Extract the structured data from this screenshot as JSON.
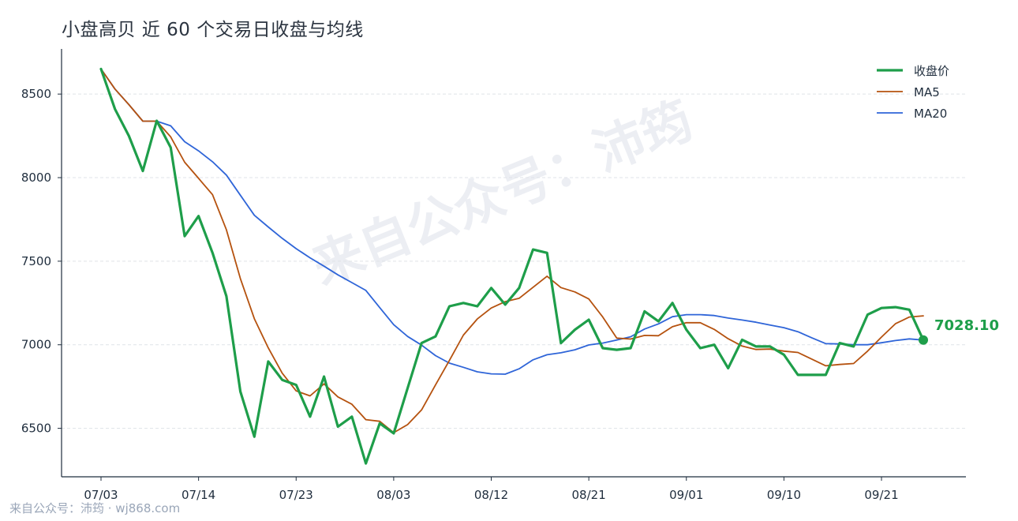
{
  "page": {
    "title": "小盘高贝 近 60 个交易日收盘与均线",
    "watermark": "来自公众号：沛筠",
    "footer": "来自公众号：沛筠 · wj868.com"
  },
  "chart_data": {
    "type": "line",
    "title": "小盘高贝 近 60 个交易日收盘与均线",
    "xlabel": "",
    "ylabel": "",
    "x_tick_labels": [
      "07/03",
      "07/14",
      "07/23",
      "08/03",
      "08/12",
      "08/21",
      "09/01",
      "09/10",
      "09/21"
    ],
    "x_tick_indices": [
      0,
      7,
      14,
      21,
      28,
      35,
      42,
      49,
      56
    ],
    "y_ticks": [
      6500,
      7000,
      7500,
      8000,
      8500
    ],
    "ylim": [
      6210,
      8770
    ],
    "grid": "horizontal dashed",
    "legend_position": "top-right",
    "last_value_label": "7028.10",
    "series": [
      {
        "name": "收盘价",
        "color": "#1e9e4a",
        "values": [
          8650,
          8410,
          8250,
          8040,
          8340,
          8180,
          7650,
          7770,
          7550,
          7290,
          6720,
          6450,
          6900,
          6790,
          6760,
          6570,
          6810,
          6510,
          6570,
          6290,
          6530,
          6470,
          6740,
          7010,
          7050,
          7230,
          7250,
          7230,
          7340,
          7240,
          7340,
          7570,
          7550,
          7010,
          7090,
          7150,
          6980,
          6970,
          6980,
          7200,
          7140,
          7250,
          7090,
          6980,
          7000,
          6860,
          7030,
          6990,
          6990,
          6940,
          6820,
          6820,
          6820,
          7010,
          6990,
          7180,
          7220,
          7225,
          7210,
          7028.1
        ]
      },
      {
        "name": "MA5",
        "color": "#b5520f",
        "values": [
          8650,
          8530,
          8437,
          8338,
          8338,
          8244,
          8092,
          7996,
          7898,
          7688,
          7396,
          7156,
          6982,
          6830,
          6724,
          6694,
          6766,
          6688,
          6644,
          6552,
          6542,
          6474,
          6522,
          6610,
          6760,
          6906,
          7058,
          7154,
          7220,
          7258,
          7278,
          7344,
          7410,
          7342,
          7316,
          7274,
          7166,
          7040,
          7034,
          7056,
          7054,
          7108,
          7132,
          7132,
          7092,
          7036,
          6992,
          6972,
          6974,
          6962,
          6954,
          6914,
          6874,
          6882,
          6888,
          6962,
          7046,
          7126,
          7166,
          7173
        ]
      },
      {
        "name": "MA20",
        "color": "#2f65d8",
        "values": [
          8650,
          8530,
          8437,
          8338,
          8338,
          8310,
          8215,
          8160,
          8095,
          8015,
          7895,
          7775,
          7705,
          7637,
          7575,
          7520,
          7470,
          7418,
          7372,
          7325,
          7222,
          7120,
          7050,
          6998,
          6935,
          6890,
          6865,
          6838,
          6826,
          6824,
          6856,
          6910,
          6940,
          6952,
          6970,
          6999,
          7010,
          7028,
          7048,
          7094,
          7125,
          7168,
          7180,
          7180,
          7175,
          7160,
          7148,
          7135,
          7118,
          7102,
          7078,
          7042,
          7007,
          7005,
          7000,
          7000,
          7012,
          7025,
          7035,
          7028
        ]
      }
    ]
  }
}
